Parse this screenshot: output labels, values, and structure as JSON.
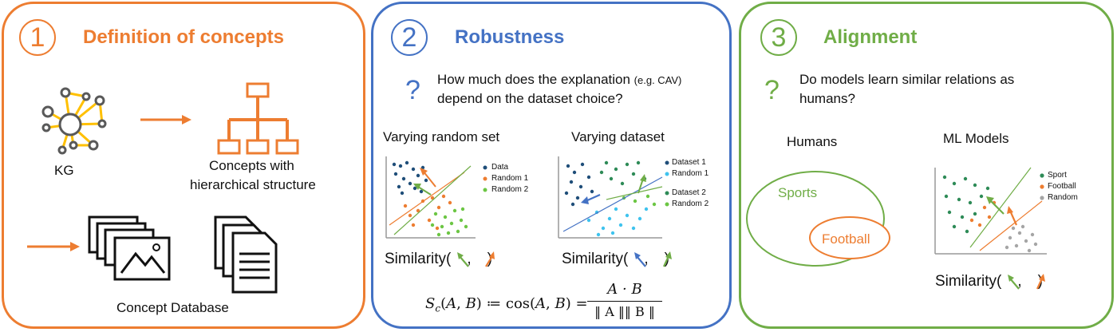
{
  "colors": {
    "orange": "#ED7D31",
    "blue": "#4472C4",
    "green": "#70AD47",
    "gray": "#595959",
    "dark_blue": "#1F4E79",
    "light_blue": "#3FC3EE",
    "bright_green": "#6CC644",
    "light_gray": "#A5A5A5"
  },
  "panel1": {
    "number": "1",
    "title": "Definition of concepts",
    "kg_label": "KG",
    "hierarchy_label_line1": "Concepts with",
    "hierarchy_label_line2": "hierarchical structure",
    "database_label": "Concept Database",
    "icons": [
      "knowledge-graph-icon",
      "hierarchy-icon",
      "image-stack-icon",
      "document-stack-icon",
      "arrow-right-icon"
    ]
  },
  "panel2": {
    "number": "2",
    "title": "Robustness",
    "question_mark": "?",
    "question_line1_a": "How much does the explanation",
    "question_line1_b": "(e.g. CAV)",
    "question_line2": "depend on the dataset choice?",
    "left_plot": {
      "title": "Varying random set",
      "legend": [
        "Data",
        "Random 1",
        "Random 2"
      ],
      "similarity": "Similarity(",
      "similarity_close": ")",
      "comma": ","
    },
    "right_plot": {
      "title": "Varying dataset",
      "legend": [
        "Dataset 1",
        "Random 1",
        "Dataset 2",
        "Random 2"
      ],
      "similarity": "Similarity(",
      "similarity_close": ")",
      "comma": ","
    },
    "formula": {
      "lhs": "S_c(A, B) ≔ cos(A, B) =",
      "numerator": "A · B",
      "denominator": "‖ A ‖‖ B ‖"
    }
  },
  "panel3": {
    "number": "3",
    "title": "Alignment",
    "question_mark": "?",
    "question_line1": "Do models learn similar relations as",
    "question_line2": "humans?",
    "humans_label": "Humans",
    "ml_label": "ML Models",
    "venn_outer": "Sports",
    "venn_inner": "Football",
    "legend": [
      "Sport",
      "Football",
      "Random"
    ],
    "similarity": "Similarity(",
    "similarity_close": ")",
    "comma": ","
  }
}
